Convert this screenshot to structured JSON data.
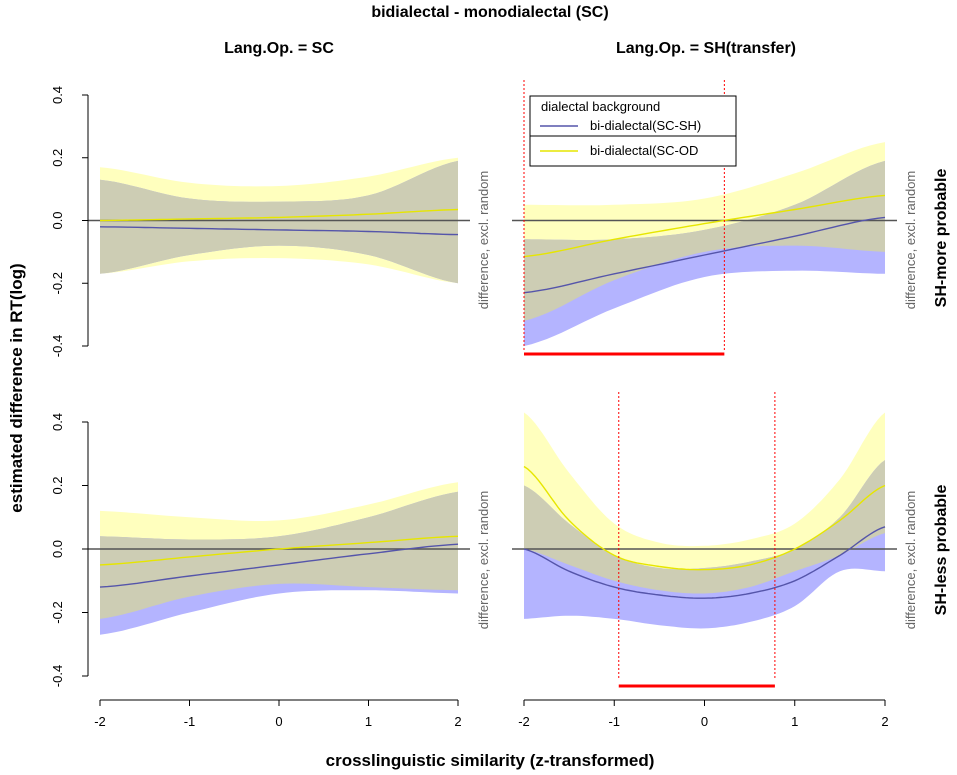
{
  "title": "bidialectal - monodialectal (SC)",
  "col_titles": [
    "Lang.Op. = SC",
    "Lang.Op. = SH(transfer)"
  ],
  "row_titles": [
    "SH-more probable",
    "SH-less probable"
  ],
  "ylabel": "estimated difference in RT(log)",
  "xlabel": "crosslinguistic similarity (z-transformed)",
  "side_label": "difference, excl. random",
  "legend": {
    "title": "dialectal background",
    "entries": [
      {
        "label": "bi-dialectal(SC-SH)",
        "color": "#5555aa"
      },
      {
        "label": "bi-dialectal(SC-OD",
        "color": "#e6e600"
      }
    ]
  },
  "colors": {
    "blue_band": "#b4b4ff",
    "yellow_band": "#ffffbe",
    "overlap_band": "#cdcdb4",
    "blue_line": "#5555aa",
    "yellow_line": "#e6e600",
    "zero_line": "#555555",
    "significance": "#ff0000"
  },
  "chart_data": [
    {
      "type": "line",
      "panel": "top-left",
      "xlim": [
        -2,
        2
      ],
      "ylim": [
        -0.4,
        0.4
      ],
      "x_ticks": [
        -2,
        -1,
        0,
        1,
        2
      ],
      "y_ticks": [
        -0.4,
        -0.2,
        0.0,
        0.2,
        0.4
      ],
      "x_tick_labels": [
        "-2",
        "-1",
        "0",
        "1",
        "2"
      ],
      "y_tick_labels": [
        "-0.4",
        "-0.2",
        "0.0",
        "0.2",
        "0.4"
      ],
      "x": [
        -2,
        -1,
        0,
        1,
        2
      ],
      "series": [
        {
          "name": "bi-dialectal(SC-SH)",
          "values": [
            -0.02,
            -0.025,
            -0.03,
            -0.035,
            -0.045
          ],
          "lower": [
            -0.17,
            -0.11,
            -0.08,
            -0.11,
            -0.2
          ],
          "upper": [
            0.13,
            0.07,
            0.06,
            0.08,
            0.19
          ]
        },
        {
          "name": "bi-dialectal(SC-OD",
          "values": [
            0.0,
            0.005,
            0.01,
            0.02,
            0.035
          ],
          "lower": [
            -0.17,
            -0.13,
            -0.12,
            -0.14,
            -0.2
          ],
          "upper": [
            0.17,
            0.12,
            0.11,
            0.14,
            0.2
          ]
        }
      ],
      "significance_region": null,
      "vlines": []
    },
    {
      "type": "line",
      "panel": "top-right",
      "xlim": [
        -2,
        2
      ],
      "ylim": [
        -0.4,
        0.4
      ],
      "x_ticks": [
        -2,
        -1,
        0,
        1,
        2
      ],
      "y_ticks": [
        -0.4,
        -0.2,
        0.0,
        0.2,
        0.4
      ],
      "x_tick_labels": [
        "-2",
        "-1",
        "0",
        "1",
        "2"
      ],
      "y_tick_labels": [
        "-0.4",
        "-0.2",
        "0.0",
        "0.2",
        "0.4"
      ],
      "x": [
        -2,
        -1,
        0,
        1,
        2
      ],
      "series": [
        {
          "name": "bi-dialectal(SC-SH)",
          "values": [
            -0.23,
            -0.17,
            -0.11,
            -0.05,
            0.01
          ],
          "lower": [
            -0.4,
            -0.28,
            -0.18,
            -0.16,
            -0.17
          ],
          "upper": [
            -0.06,
            -0.06,
            -0.03,
            0.05,
            0.19
          ]
        },
        {
          "name": "bi-dialectal(SC-OD",
          "values": [
            -0.115,
            -0.06,
            -0.01,
            0.035,
            0.08
          ],
          "lower": [
            -0.32,
            -0.19,
            -0.1,
            -0.08,
            -0.1
          ],
          "upper": [
            0.05,
            0.05,
            0.07,
            0.15,
            0.25
          ]
        }
      ],
      "significance_region": [
        -2,
        0.22
      ],
      "vlines": [
        -2,
        0.22
      ]
    },
    {
      "type": "line",
      "panel": "bottom-left",
      "xlim": [
        -2,
        2
      ],
      "ylim": [
        -0.4,
        0.4
      ],
      "x_ticks": [
        -2,
        -1,
        0,
        1,
        2
      ],
      "y_ticks": [
        -0.4,
        -0.2,
        0.0,
        0.2,
        0.4
      ],
      "x_tick_labels": [
        "-2",
        "-1",
        "0",
        "1",
        "2"
      ],
      "y_tick_labels": [
        "-0.4",
        "-0.2",
        "0.0",
        "0.2",
        "0.4"
      ],
      "x": [
        -2,
        -1,
        0,
        1,
        2
      ],
      "series": [
        {
          "name": "bi-dialectal(SC-SH)",
          "values": [
            -0.12,
            -0.085,
            -0.05,
            -0.015,
            0.015
          ],
          "lower": [
            -0.27,
            -0.2,
            -0.14,
            -0.13,
            -0.14
          ],
          "upper": [
            0.04,
            0.03,
            0.04,
            0.1,
            0.18
          ]
        },
        {
          "name": "bi-dialectal(SC-OD",
          "values": [
            -0.05,
            -0.025,
            0.0,
            0.02,
            0.04
          ],
          "lower": [
            -0.22,
            -0.15,
            -0.11,
            -0.12,
            -0.13
          ],
          "upper": [
            0.12,
            0.1,
            0.09,
            0.14,
            0.21
          ]
        }
      ],
      "significance_region": null,
      "vlines": []
    },
    {
      "type": "line",
      "panel": "bottom-right",
      "xlim": [
        -2,
        2
      ],
      "ylim": [
        -0.4,
        0.4
      ],
      "x_ticks": [
        -2,
        -1,
        0,
        1,
        2
      ],
      "y_ticks": [
        -0.4,
        -0.2,
        0.0,
        0.2,
        0.4
      ],
      "x_tick_labels": [
        "-2",
        "-1",
        "0",
        "1",
        "2"
      ],
      "y_tick_labels": [
        "-0.4",
        "-0.2",
        "0.0",
        "0.2",
        "0.4"
      ],
      "x": [
        -2,
        -1.5,
        -1,
        -0.5,
        0,
        0.5,
        1,
        1.5,
        2
      ],
      "series": [
        {
          "name": "bi-dialectal(SC-SH)",
          "values": [
            0.0,
            -0.07,
            -0.12,
            -0.145,
            -0.155,
            -0.14,
            -0.1,
            -0.02,
            0.07
          ],
          "lower": [
            -0.22,
            -0.21,
            -0.22,
            -0.24,
            -0.25,
            -0.23,
            -0.18,
            -0.07,
            -0.07
          ],
          "upper": [
            0.2,
            0.08,
            -0.02,
            -0.06,
            -0.06,
            -0.04,
            0.0,
            0.1,
            0.28
          ]
        },
        {
          "name": "bi-dialectal(SC-OD",
          "values": [
            0.26,
            0.09,
            -0.02,
            -0.055,
            -0.065,
            -0.05,
            0.0,
            0.09,
            0.2
          ],
          "lower": [
            0.0,
            -0.05,
            -0.1,
            -0.13,
            -0.14,
            -0.12,
            -0.07,
            -0.02,
            0.05
          ],
          "upper": [
            0.43,
            0.24,
            0.08,
            0.02,
            0.01,
            0.03,
            0.08,
            0.22,
            0.43
          ]
        }
      ],
      "significance_region": [
        -0.95,
        0.78
      ],
      "vlines": [
        -0.95,
        0.78
      ]
    }
  ]
}
